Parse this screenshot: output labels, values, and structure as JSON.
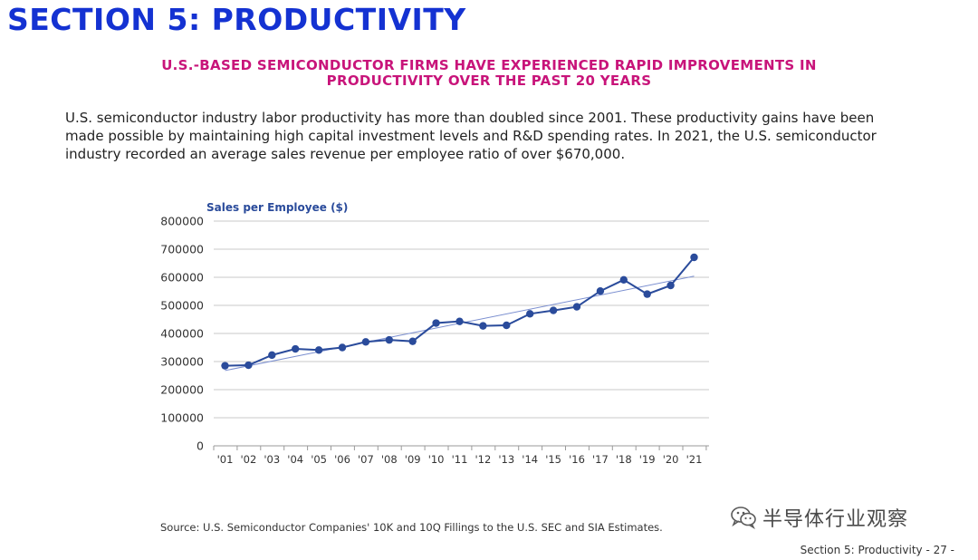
{
  "page": {
    "section_title": "SECTION 5: PRODUCTIVITY",
    "subtitle": "U.S.-BASED SEMICONDUCTOR FIRMS HAVE EXPERIENCED RAPID IMPROVEMENTS IN PRODUCTIVITY OVER THE PAST 20 YEARS",
    "body_text": "U.S. semiconductor industry labor productivity has more than doubled since 2001. These productivity gains have been made possible by maintaining high capital investment levels and R&D spending rates. In 2021, the U.S. semiconductor industry recorded an average sales revenue per employee ratio of over $670,000.",
    "source": "Source: U.S. Semiconductor Companies' 10K and 10Q Fillings to the U.S. SEC and SIA Estimates.",
    "watermark": "半导体行业观察",
    "footer": "Section 5: Productivity - 27 -"
  },
  "colors": {
    "title": "#1432d2",
    "subtitle": "#c8147a",
    "series": "#2a4b9b",
    "trend": "#7b8fd0",
    "grid": "#c8c8c8"
  },
  "chart_data": {
    "type": "line",
    "title": "Sales per Employee ($)",
    "categories": [
      "'01",
      "'02",
      "'03",
      "'04",
      "'05",
      "'06",
      "'07",
      "'08",
      "'09",
      "'10",
      "'11",
      "'12",
      "'13",
      "'14",
      "'15",
      "'16",
      "'17",
      "'18",
      "'19",
      "'20",
      "'21"
    ],
    "series": [
      {
        "values": [
          285000,
          287000,
          323000,
          345000,
          341000,
          350000,
          370000,
          377000,
          372000,
          437000,
          443000,
          427000,
          429000,
          470000,
          482000,
          495000,
          551000,
          591000,
          540000,
          571000,
          671000
        ]
      }
    ],
    "trendline": {
      "type": "linear",
      "start": 268000,
      "end": 604000
    },
    "y_ticks": [
      "0",
      "100000",
      "200000",
      "300000",
      "400000",
      "500000",
      "600000",
      "700000",
      "800000"
    ],
    "ylim": [
      0,
      800000
    ],
    "grid": true,
    "legend": "none",
    "markers": true
  }
}
